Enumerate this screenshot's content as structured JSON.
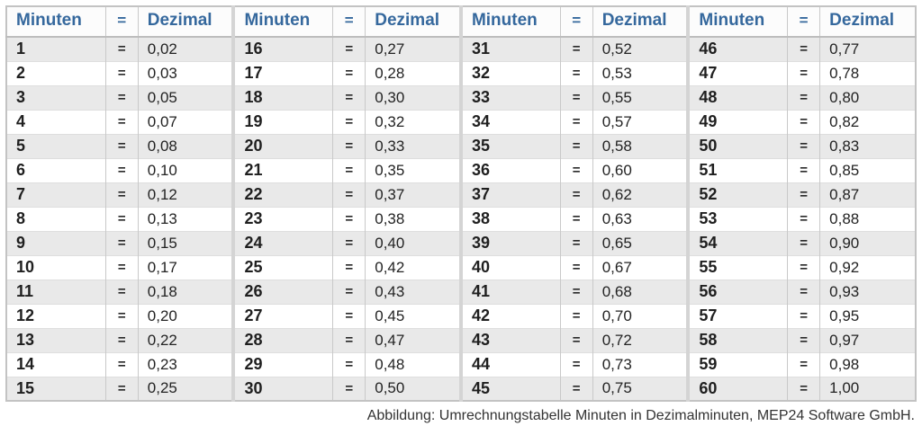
{
  "chart_data": {
    "type": "table",
    "column_headers": [
      "Minuten",
      "=",
      "Dezimal"
    ],
    "header_repeat": 4,
    "equals_sign": "=",
    "groups": [
      [
        [
          "1",
          "0,02"
        ],
        [
          "2",
          "0,03"
        ],
        [
          "3",
          "0,05"
        ],
        [
          "4",
          "0,07"
        ],
        [
          "5",
          "0,08"
        ],
        [
          "6",
          "0,10"
        ],
        [
          "7",
          "0,12"
        ],
        [
          "8",
          "0,13"
        ],
        [
          "9",
          "0,15"
        ],
        [
          "10",
          "0,17"
        ],
        [
          "11",
          "0,18"
        ],
        [
          "12",
          "0,20"
        ],
        [
          "13",
          "0,22"
        ],
        [
          "14",
          "0,23"
        ],
        [
          "15",
          "0,25"
        ]
      ],
      [
        [
          "16",
          "0,27"
        ],
        [
          "17",
          "0,28"
        ],
        [
          "18",
          "0,30"
        ],
        [
          "19",
          "0,32"
        ],
        [
          "20",
          "0,33"
        ],
        [
          "21",
          "0,35"
        ],
        [
          "22",
          "0,37"
        ],
        [
          "23",
          "0,38"
        ],
        [
          "24",
          "0,40"
        ],
        [
          "25",
          "0,42"
        ],
        [
          "26",
          "0,43"
        ],
        [
          "27",
          "0,45"
        ],
        [
          "28",
          "0,47"
        ],
        [
          "29",
          "0,48"
        ],
        [
          "30",
          "0,50"
        ]
      ],
      [
        [
          "31",
          "0,52"
        ],
        [
          "32",
          "0,53"
        ],
        [
          "33",
          "0,55"
        ],
        [
          "34",
          "0,57"
        ],
        [
          "35",
          "0,58"
        ],
        [
          "36",
          "0,60"
        ],
        [
          "37",
          "0,62"
        ],
        [
          "38",
          "0,63"
        ],
        [
          "39",
          "0,65"
        ],
        [
          "40",
          "0,67"
        ],
        [
          "41",
          "0,68"
        ],
        [
          "42",
          "0,70"
        ],
        [
          "43",
          "0,72"
        ],
        [
          "44",
          "0,73"
        ],
        [
          "45",
          "0,75"
        ]
      ],
      [
        [
          "46",
          "0,77"
        ],
        [
          "47",
          "0,78"
        ],
        [
          "48",
          "0,80"
        ],
        [
          "49",
          "0,82"
        ],
        [
          "50",
          "0,83"
        ],
        [
          "51",
          "0,85"
        ],
        [
          "52",
          "0,87"
        ],
        [
          "53",
          "0,88"
        ],
        [
          "54",
          "0,90"
        ],
        [
          "55",
          "0,92"
        ],
        [
          "56",
          "0,93"
        ],
        [
          "57",
          "0,95"
        ],
        [
          "58",
          "0,97"
        ],
        [
          "59",
          "0,98"
        ],
        [
          "60",
          "1,00"
        ]
      ]
    ],
    "caption": "Abbildung: Umrechnungstabelle Minuten in Dezimalminuten, MEP24 Software GmbH."
  },
  "colors": {
    "header_text": "#35689d",
    "row_alt_background": "#e9e9e9",
    "row_background": "#ffffff",
    "outer_border": "#c3c3c3",
    "group_divider": "#d4d4d4",
    "caption_text": "#333333"
  }
}
